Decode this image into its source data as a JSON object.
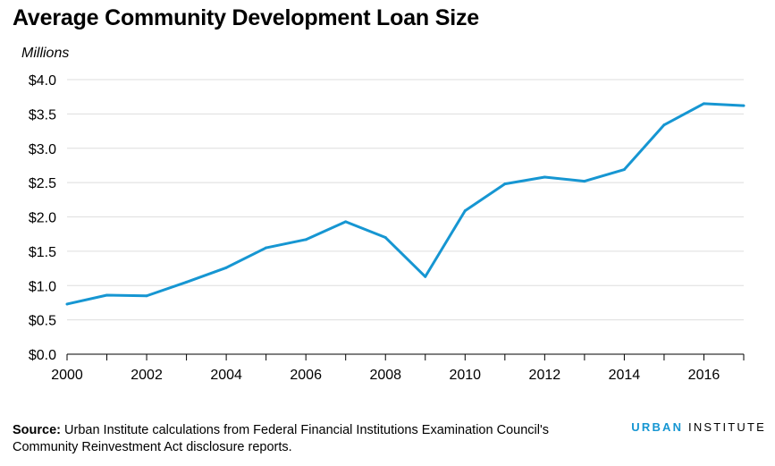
{
  "title": "Average Community Development Loan Size",
  "units_label": "Millions",
  "footer": {
    "source_label": "Source:",
    "source_text": "Urban Institute calculations from Federal Financial Institutions Examination Council's Community Reinvestment Act disclosure reports."
  },
  "logo": {
    "part1": "URBAN",
    "part2": "INSTITUTE"
  },
  "colors": {
    "line": "#1696d2",
    "grid": "#dedede",
    "axis": "#000000"
  },
  "chart_data": {
    "type": "line",
    "title": "Average Community Development Loan Size",
    "ylabel": "Millions",
    "xlabel": "",
    "x": [
      2000,
      2001,
      2002,
      2003,
      2004,
      2005,
      2006,
      2007,
      2008,
      2009,
      2010,
      2011,
      2012,
      2013,
      2014,
      2015,
      2016,
      2017
    ],
    "series": [
      {
        "values": [
          0.73,
          0.86,
          0.85,
          1.05,
          1.26,
          1.55,
          1.67,
          1.93,
          1.7,
          1.13,
          2.09,
          2.48,
          2.58,
          2.52,
          2.69,
          3.34,
          3.65,
          3.62
        ]
      }
    ],
    "xlim": [
      2000,
      2017
    ],
    "ylim": [
      0,
      4
    ],
    "x_ticks": [
      2000,
      2002,
      2004,
      2006,
      2008,
      2010,
      2012,
      2014,
      2016
    ],
    "x_tick_labels": [
      "2000",
      "2002",
      "2004",
      "2006",
      "2008",
      "2010",
      "2012",
      "2014",
      "2016"
    ],
    "y_ticks": [
      0,
      0.5,
      1,
      1.5,
      2,
      2.5,
      3,
      3.5,
      4
    ],
    "y_tick_labels": [
      "$0.0",
      "$0.5",
      "$1.0",
      "$1.5",
      "$2.0",
      "$2.5",
      "$3.0",
      "$3.5",
      "$4.0"
    ],
    "grid": "horizontal",
    "legend": "none"
  }
}
